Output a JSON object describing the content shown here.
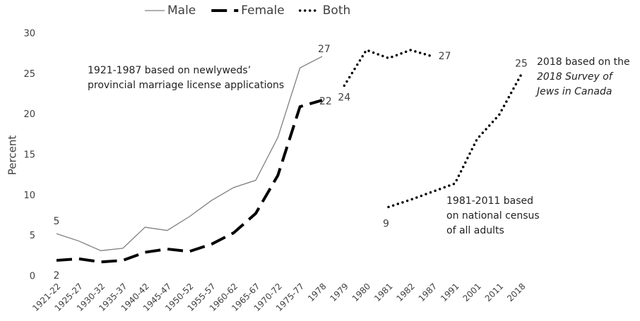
{
  "chart_data": {
    "type": "line",
    "ylabel": "Percent",
    "categories": [
      "1921-22",
      "1925-27",
      "1930-32",
      "1935-37",
      "1940-42",
      "1945-47",
      "1950-52",
      "1955-57",
      "1960-62",
      "1965-67",
      "1970-72",
      "1975-77",
      "1978",
      "1979",
      "1980",
      "1981",
      "1982",
      "1987",
      "1991",
      "2001",
      "2011",
      "2018"
    ],
    "ylim": [
      0,
      30
    ],
    "yticks": [
      0,
      5,
      10,
      15,
      20,
      25,
      30
    ],
    "grid": false,
    "legend": "top",
    "series": [
      {
        "name": "Male",
        "color": "#7f7f7f",
        "style": "solid",
        "values": [
          5.3,
          4.4,
          3.2,
          3.5,
          6.1,
          5.7,
          7.4,
          9.4,
          11,
          11.9,
          17.2,
          25.8,
          27.2,
          null,
          null,
          null,
          null,
          null,
          null,
          null,
          null,
          null
        ],
        "value_labels": [
          "5",
          null,
          null,
          null,
          null,
          null,
          null,
          null,
          null,
          null,
          null,
          null,
          "27",
          null,
          null,
          null,
          null,
          null,
          null,
          null,
          null,
          null
        ]
      },
      {
        "name": "Female",
        "color": "#000000",
        "style": "dashed",
        "values": [
          2,
          2.2,
          1.8,
          2,
          3,
          3.4,
          3.1,
          4,
          5.4,
          7.8,
          12.5,
          21,
          21.8,
          null,
          null,
          null,
          null,
          null,
          null,
          null,
          null,
          null
        ],
        "value_labels": [
          "2",
          null,
          null,
          null,
          null,
          null,
          null,
          null,
          null,
          null,
          null,
          null,
          "22",
          null,
          null,
          null,
          null,
          null,
          null,
          null,
          null,
          null
        ]
      },
      {
        "name": "Both",
        "color": "#000000",
        "style": "dotted",
        "values": [
          null,
          null,
          null,
          null,
          null,
          null,
          null,
          null,
          null,
          null,
          null,
          null,
          null,
          23.6,
          28,
          27,
          28,
          27.2,
          null,
          null,
          null,
          null
        ],
        "value_labels": [
          null,
          null,
          null,
          null,
          null,
          null,
          null,
          null,
          null,
          null,
          null,
          null,
          null,
          "24",
          null,
          null,
          null,
          "27",
          null,
          null,
          null,
          null
        ]
      },
      {
        "color": "#000000",
        "style": "dotted",
        "values": [
          null,
          null,
          null,
          null,
          null,
          null,
          null,
          null,
          null,
          null,
          null,
          null,
          null,
          null,
          null,
          8.6,
          9.5,
          10.5,
          11.5,
          17,
          20,
          25
        ],
        "value_labels": [
          null,
          null,
          null,
          null,
          null,
          null,
          null,
          null,
          null,
          null,
          null,
          null,
          null,
          null,
          null,
          "9",
          null,
          null,
          null,
          null,
          null,
          "25"
        ]
      }
    ],
    "annotations": [
      {
        "lines": [
          {
            "text": "1921-1987 based on newlyweds’"
          },
          {
            "text": "provincial marriage license applications"
          }
        ]
      },
      {
        "lines": [
          {
            "text": "1981-2011 based"
          },
          {
            "text": "on national census"
          },
          {
            "text": "of all adults"
          }
        ]
      },
      {
        "lines": [
          {
            "text": "2018 based on the"
          },
          {
            "text": "2018 Survey of",
            "italic": true
          },
          {
            "text": "Jews in Canada",
            "italic": true
          }
        ]
      }
    ]
  }
}
